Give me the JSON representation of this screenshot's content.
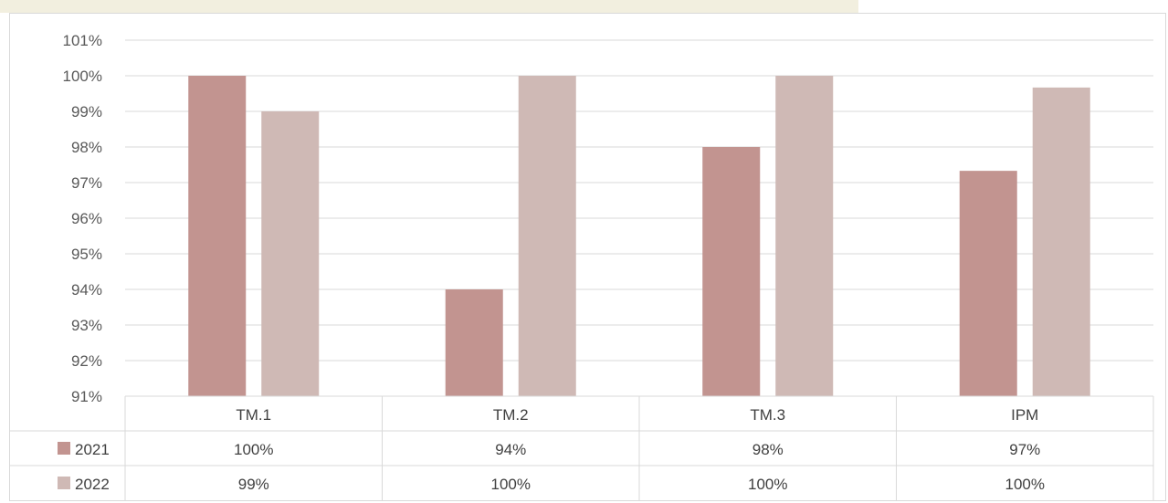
{
  "chart_data": {
    "type": "bar",
    "categories": [
      "TM.1",
      "TM.2",
      "TM.3",
      "IPM"
    ],
    "series": [
      {
        "name": "2021",
        "values": [
          100,
          94,
          98,
          97.33
        ],
        "labels": [
          "100%",
          "94%",
          "98%",
          "97%"
        ],
        "color": "#c29490"
      },
      {
        "name": "2022",
        "values": [
          99,
          100,
          100,
          99.67
        ],
        "labels": [
          "99%",
          "100%",
          "100%",
          "100%"
        ],
        "color": "#cfb9b5"
      }
    ],
    "yticks": [
      "101%",
      "100%",
      "99%",
      "98%",
      "97%",
      "96%",
      "95%",
      "94%",
      "93%",
      "92%",
      "91%"
    ],
    "ylim": [
      91,
      101
    ],
    "grid": true,
    "legend": "data-table"
  }
}
